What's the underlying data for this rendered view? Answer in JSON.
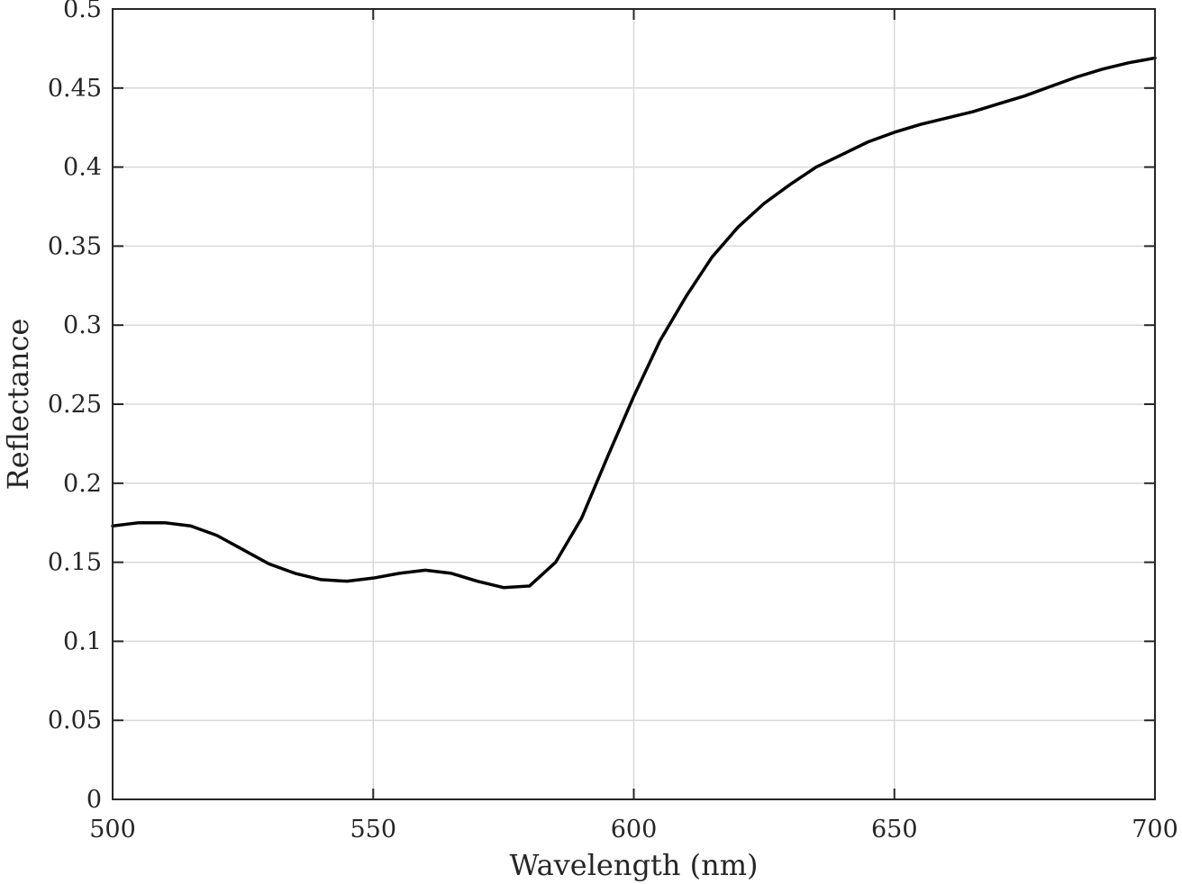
{
  "chart_data": {
    "type": "line",
    "title": "",
    "xlabel": "Wavelength (nm)",
    "ylabel": "Reflectance",
    "xlim": [
      500,
      700
    ],
    "ylim": [
      0,
      0.5
    ],
    "xticks": [
      500,
      550,
      600,
      650,
      700
    ],
    "xtick_labels": [
      "500",
      "550",
      "600",
      "650",
      "700"
    ],
    "yticks": [
      0,
      0.05,
      0.1,
      0.15,
      0.2,
      0.25,
      0.3,
      0.35,
      0.4,
      0.45,
      0.5
    ],
    "ytick_labels": [
      "0",
      "0.05",
      "0.1",
      "0.15",
      "0.2",
      "0.25",
      "0.3",
      "0.35",
      "0.4",
      "0.45",
      "0.5"
    ],
    "grid": true,
    "line_color": "#000000",
    "series": [
      {
        "x": [
          500,
          505,
          510,
          515,
          520,
          525,
          530,
          535,
          540,
          545,
          550,
          555,
          560,
          565,
          570,
          575,
          580,
          585,
          590,
          595,
          600,
          605,
          610,
          615,
          620,
          625,
          630,
          635,
          640,
          645,
          650,
          655,
          660,
          665,
          670,
          675,
          680,
          685,
          690,
          695,
          700
        ],
        "values": [
          0.173,
          0.175,
          0.175,
          0.173,
          0.167,
          0.158,
          0.149,
          0.143,
          0.139,
          0.138,
          0.14,
          0.143,
          0.145,
          0.143,
          0.138,
          0.134,
          0.135,
          0.15,
          0.178,
          0.217,
          0.255,
          0.29,
          0.318,
          0.343,
          0.362,
          0.377,
          0.389,
          0.4,
          0.408,
          0.416,
          0.422,
          0.427,
          0.431,
          0.435,
          0.44,
          0.445,
          0.451,
          0.457,
          0.462,
          0.466,
          0.469
        ]
      }
    ]
  }
}
